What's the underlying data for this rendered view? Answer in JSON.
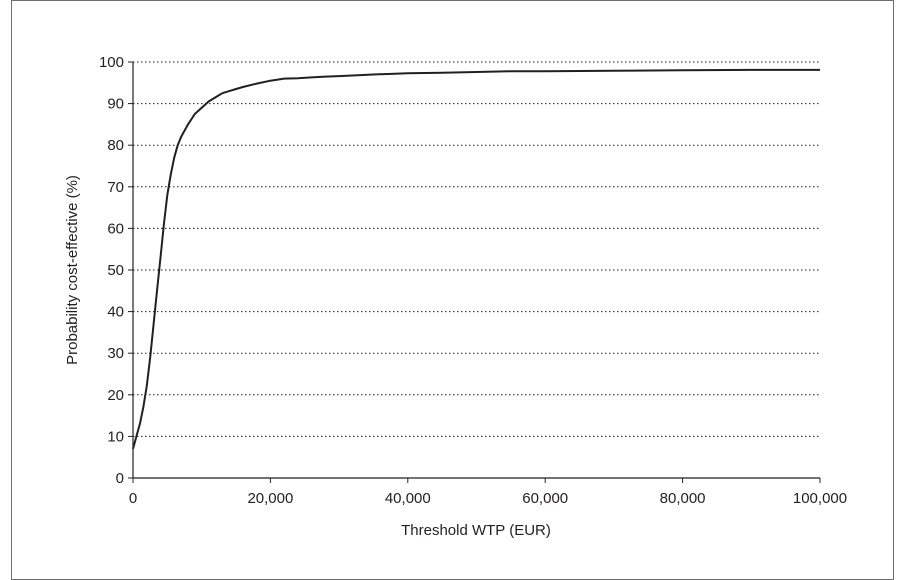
{
  "chart_data": {
    "type": "line",
    "title": "",
    "xlabel": "Threshold WTP (EUR)",
    "ylabel": "Probability cost-effective (%)",
    "xlim": [
      0,
      100000
    ],
    "ylim": [
      0,
      100
    ],
    "x_ticks": [
      0,
      20000,
      40000,
      60000,
      80000,
      100000
    ],
    "x_tick_labels": [
      "0",
      "20,000",
      "40,000",
      "60,000",
      "80,000",
      "100,000"
    ],
    "y_ticks": [
      0,
      10,
      20,
      30,
      40,
      50,
      60,
      70,
      80,
      90,
      100
    ],
    "y_tick_labels": [
      "0",
      "10",
      "20",
      "30",
      "40",
      "50",
      "60",
      "70",
      "80",
      "90",
      "100"
    ],
    "grid": "horizontal-dotted",
    "legend": "none",
    "line_color": "#231f20",
    "series": [
      {
        "x": [
          0,
          500,
          1000,
          1500,
          2000,
          2500,
          3000,
          3500,
          4000,
          4500,
          5000,
          5500,
          6000,
          6500,
          7000,
          8000,
          9000,
          10000,
          11000,
          12000,
          13000,
          14000,
          15000,
          16000,
          18000,
          20000,
          22000,
          24000,
          26000,
          28000,
          30000,
          35000,
          40000,
          45000,
          50000,
          55000,
          60000,
          70000,
          80000,
          90000,
          100000
        ],
        "y": [
          7,
          10,
          13,
          17,
          22,
          29,
          37,
          45,
          53,
          61,
          68,
          73,
          77,
          80,
          82,
          85,
          87.5,
          89,
          90.5,
          91.5,
          92.5,
          93,
          93.5,
          94,
          94.8,
          95.5,
          96,
          96.1,
          96.3,
          96.5,
          96.6,
          97,
          97.3,
          97.4,
          97.6,
          97.8,
          97.8,
          97.9,
          98,
          98.1,
          98.1
        ]
      }
    ]
  }
}
